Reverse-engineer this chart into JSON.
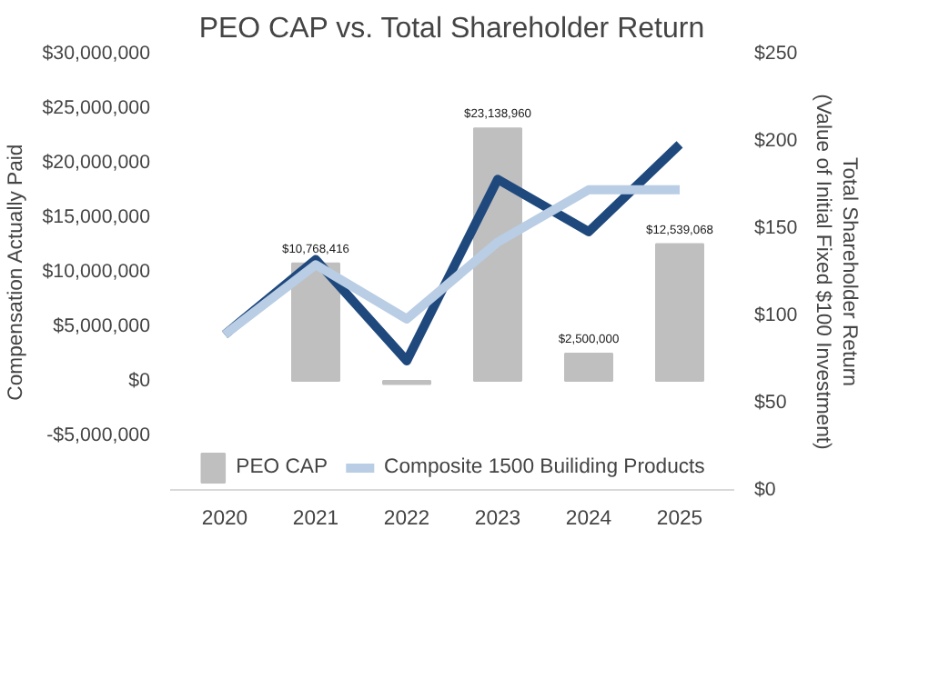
{
  "chart_data": {
    "type": "bar",
    "title": "PEO CAP vs. Total Shareholder Return",
    "categories": [
      "2020",
      "2021",
      "2022",
      "2023",
      "2024",
      "2025"
    ],
    "ylabel": "Compensation Actually Paid",
    "y2label": "Total Shareholder Return\n(Value of Initial Fixed $100 Investment)",
    "ylim": [
      -10000000,
      30000000
    ],
    "yticks": [
      {
        "value": -5000000,
        "label": "-$5,000,000"
      },
      {
        "value": 0,
        "label": "$0"
      },
      {
        "value": 5000000,
        "label": "$5,000,000"
      },
      {
        "value": 10000000,
        "label": "$10,000,000"
      },
      {
        "value": 15000000,
        "label": "$15,000,000"
      },
      {
        "value": 20000000,
        "label": "$20,000,000"
      },
      {
        "value": 25000000,
        "label": "$25,000,000"
      },
      {
        "value": 30000000,
        "label": "$30,000,000"
      }
    ],
    "y2lim": [
      0,
      250
    ],
    "y2ticks": [
      {
        "value": 0,
        "label": "$0"
      },
      {
        "value": 50,
        "label": "$50"
      },
      {
        "value": 100,
        "label": "$100"
      },
      {
        "value": 150,
        "label": "$150"
      },
      {
        "value": 200,
        "label": "$200"
      },
      {
        "value": 250,
        "label": "$250"
      }
    ],
    "series": [
      {
        "name": "PEO CAP",
        "color": "#bfbfbf",
        "values": [
          null,
          10768416,
          -300000,
          23138960,
          2500000,
          12539068
        ],
        "value_labels": [
          null,
          "$10,768,416",
          null,
          "$23,138,960",
          "$2,500,000",
          "$12,539,068"
        ]
      },
      {
        "type": "line",
        "axis": "y2",
        "color": "#1f497d",
        "values": [
          89,
          132,
          74,
          178,
          148,
          198
        ]
      },
      {
        "name": "Composite 1500 Builiding Products",
        "type": "line",
        "axis": "y2",
        "color": "#b9cde5",
        "values": [
          89,
          129,
          98,
          142,
          172,
          172
        ]
      }
    ],
    "legend": "bottom",
    "grid": false
  }
}
